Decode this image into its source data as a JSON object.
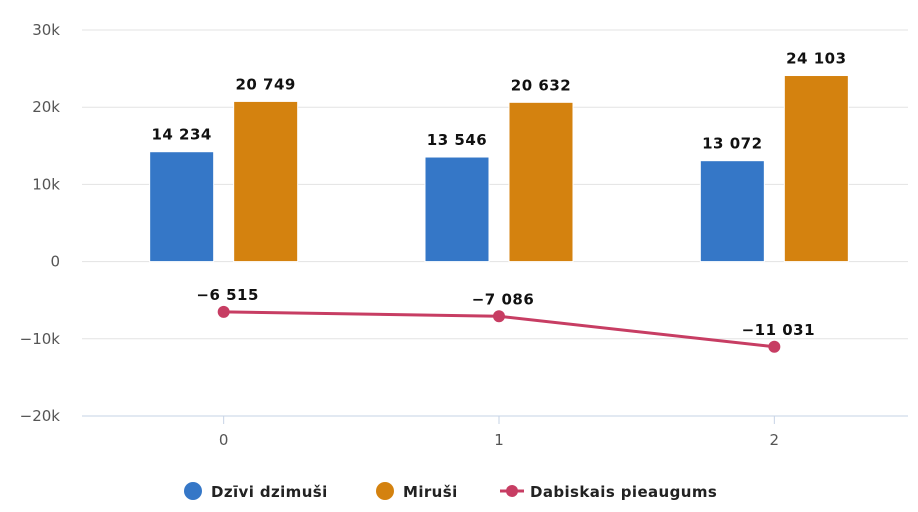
{
  "chart_data": {
    "type": "bar",
    "categories": [
      "0",
      "1",
      "2"
    ],
    "y_ticks": [
      "30k",
      "20k",
      "10k",
      "0",
      "−10k",
      "−20k"
    ],
    "y_tick_values": [
      30000,
      20000,
      10000,
      0,
      -10000,
      -20000
    ],
    "ylim": [
      -20000,
      30000
    ],
    "grid": true,
    "legend_position": "bottom",
    "series": [
      {
        "name": "Dzīvi dzimuši",
        "type": "bar",
        "color": "#3577c7",
        "values": [
          14234,
          13546,
          13072
        ],
        "labels": [
          "14 234",
          "13 546",
          "13 072"
        ]
      },
      {
        "name": "Miruši",
        "type": "bar",
        "color": "#d4820f",
        "values": [
          20749,
          20632,
          24103
        ],
        "labels": [
          "20 749",
          "20 632",
          "24 103"
        ]
      },
      {
        "name": "Dabiskais pieaugums",
        "type": "line",
        "color": "#c73d63",
        "values": [
          -6515,
          -7086,
          -11031
        ],
        "labels": [
          "−6 515",
          "−7 086",
          "−11 031"
        ]
      }
    ]
  }
}
